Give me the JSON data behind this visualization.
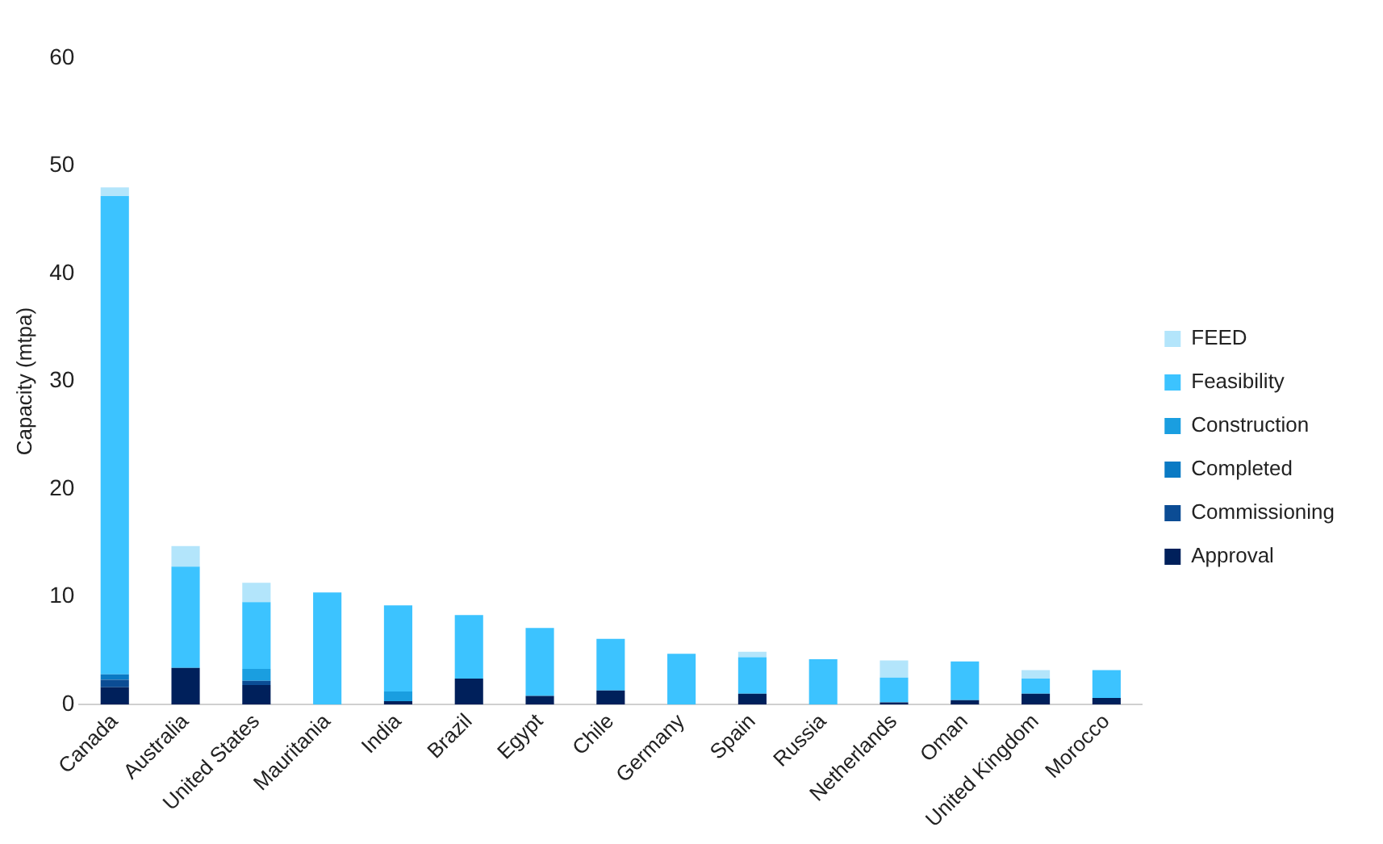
{
  "chart_data": {
    "type": "bar",
    "stacked": true,
    "ylabel": "Capacity (mtpa)",
    "categories": [
      "Canada",
      "Australia",
      "United States",
      "Mauritania",
      "India",
      "Brazil",
      "Egypt",
      "Chile",
      "Germany",
      "Spain",
      "Russia",
      "Netherlands",
      "Oman",
      "United Kingdom",
      "Morocco"
    ],
    "series": [
      {
        "name": "Approval",
        "color": "#00205b",
        "values": [
          1.6,
          3.4,
          1.8,
          null,
          0.3,
          2.4,
          0.8,
          1.3,
          null,
          1.0,
          null,
          0.2,
          0.4,
          1.0,
          0.6
        ]
      },
      {
        "name": "Commissioning",
        "color": "#0b4c94",
        "values": [
          0.7,
          null,
          0.4,
          null,
          null,
          null,
          null,
          null,
          null,
          null,
          null,
          null,
          null,
          null,
          null
        ]
      },
      {
        "name": "Completed",
        "color": "#0a7ac4",
        "values": [
          0.5,
          null,
          null,
          null,
          null,
          null,
          null,
          null,
          null,
          null,
          null,
          null,
          null,
          null,
          null
        ]
      },
      {
        "name": "Construction",
        "color": "#1a9ee0",
        "values": [
          null,
          null,
          1.1,
          null,
          0.9,
          null,
          null,
          null,
          null,
          null,
          null,
          null,
          null,
          null,
          null
        ]
      },
      {
        "name": "Feasibility",
        "color": "#3cc3ff",
        "values": [
          44.4,
          9.4,
          6.2,
          10.4,
          8.0,
          5.9,
          6.3,
          4.8,
          4.7,
          3.4,
          4.2,
          2.3,
          3.6,
          1.4,
          2.6
        ]
      },
      {
        "name": "FEED",
        "color": "#b3e5fb",
        "values": [
          0.8,
          1.9,
          1.8,
          null,
          null,
          null,
          null,
          null,
          null,
          0.5,
          null,
          1.6,
          null,
          0.8,
          null
        ]
      }
    ],
    "ylim": [
      0,
      60
    ],
    "yticks": [
      0,
      10,
      20,
      30,
      40,
      50,
      60
    ],
    "grid": false,
    "legend": "right"
  }
}
